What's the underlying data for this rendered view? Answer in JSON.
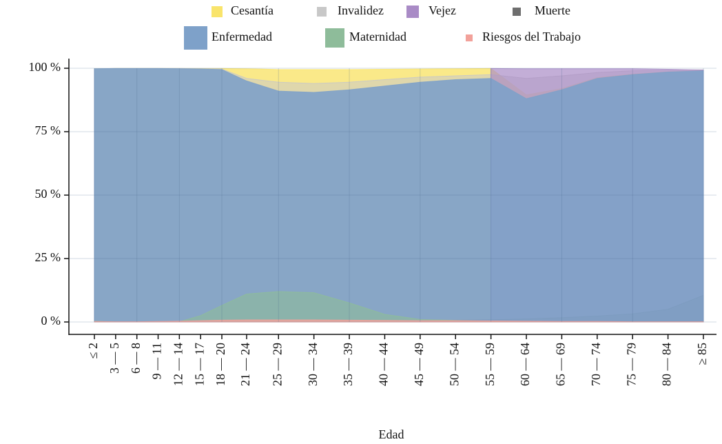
{
  "chart_data": {
    "type": "area",
    "xlabel": "Edad",
    "x": [
      1,
      4,
      7,
      10,
      13,
      16,
      19,
      22.5,
      27,
      32,
      37,
      42,
      47,
      52,
      57,
      62,
      67,
      72,
      77,
      82,
      87
    ],
    "xlim": [
      1,
      87
    ],
    "xticks": [
      {
        "value": 1,
        "label": "≤ 2"
      },
      {
        "value": 4,
        "label": "3 — 5"
      },
      {
        "value": 7,
        "label": "6 — 8"
      },
      {
        "value": 10,
        "label": "9 — 11"
      },
      {
        "value": 13,
        "label": "12 — 14"
      },
      {
        "value": 16,
        "label": "15 — 17"
      },
      {
        "value": 19,
        "label": "18 — 20"
      },
      {
        "value": 22.5,
        "label": "21 — 24"
      },
      {
        "value": 27,
        "label": "25 — 29"
      },
      {
        "value": 32,
        "label": "30 — 34"
      },
      {
        "value": 37,
        "label": "35 — 39"
      },
      {
        "value": 42,
        "label": "40 — 44"
      },
      {
        "value": 47,
        "label": "45 — 49"
      },
      {
        "value": 52,
        "label": "50 — 54"
      },
      {
        "value": 57,
        "label": "55 — 59"
      },
      {
        "value": 62,
        "label": "60 — 64"
      },
      {
        "value": 67,
        "label": "65 — 69"
      },
      {
        "value": 72,
        "label": "70 — 74"
      },
      {
        "value": 77,
        "label": "75 — 79"
      },
      {
        "value": 82,
        "label": "80 — 84"
      },
      {
        "value": 87,
        "label": "≥ 85"
      }
    ],
    "ylim": [
      -3,
      102
    ],
    "yticks": [
      {
        "value": 0,
        "label": "0 %"
      },
      {
        "value": 25,
        "label": "25 %"
      },
      {
        "value": 50,
        "label": "50 %"
      },
      {
        "value": 75,
        "label": "75 %"
      },
      {
        "value": 100,
        "label": "100 %"
      }
    ],
    "grid": true,
    "series": [
      {
        "name": "Cesantía",
        "color": "#f9e46b",
        "values": [
          99.8,
          99.9,
          99.9,
          99.9,
          99.9,
          99.9,
          99.9,
          99.8,
          99.5,
          99.5,
          99.5,
          99.6,
          99.7,
          99.8,
          99.9,
          89.5,
          92,
          96.3,
          97.7,
          98.6,
          99.1
        ]
      },
      {
        "name": "Invalidez",
        "color": "#c8c8c8",
        "values": [
          99.8,
          99.9,
          99.9,
          99.9,
          99.9,
          99.8,
          99.7,
          96,
          94.5,
          94,
          94.5,
          95.5,
          96.5,
          97,
          97.5,
          96,
          97,
          98.3,
          99,
          99.2,
          99.4
        ]
      },
      {
        "name": "Vejez",
        "color": "#a98bc6",
        "values": [
          null,
          null,
          null,
          null,
          null,
          null,
          null,
          null,
          null,
          null,
          null,
          null,
          null,
          null,
          99.9,
          99.8,
          99.8,
          99.8,
          99.8,
          99.6,
          99.3
        ]
      },
      {
        "name": "Muerte",
        "color": "#6e6e6e",
        "values": [
          0,
          0,
          0,
          0,
          0,
          0,
          0.2,
          0.3,
          0.3,
          0.4,
          0.4,
          0.5,
          0.6,
          0.7,
          0.9,
          1.2,
          1.7,
          2.3,
          3.2,
          5,
          10.5
        ]
      },
      {
        "name": "Enfermedad",
        "color": "#7ea1c9",
        "values": [
          99.8,
          99.9,
          99.9,
          99.9,
          99.8,
          99.7,
          99.5,
          95,
          91,
          90.5,
          91.5,
          93,
          94.5,
          95.5,
          96,
          88,
          91.5,
          96,
          97.5,
          98.5,
          99
        ]
      },
      {
        "name": "Maternidad",
        "color": "#8ebc9a",
        "values": [
          0.3,
          0,
          0,
          0,
          0.1,
          2.5,
          6.5,
          11,
          12,
          11.5,
          7.5,
          3,
          1,
          0.6,
          0.3,
          0.2,
          0.1,
          0.1,
          0,
          0,
          0
        ]
      },
      {
        "name": "Riesgos del Trabajo",
        "color": "#f2a19a",
        "values": [
          0.2,
          0.1,
          0.1,
          0.2,
          0.3,
          0.5,
          0.7,
          0.8,
          0.8,
          0.8,
          0.7,
          0.6,
          0.5,
          0.5,
          0.4,
          0.3,
          0.2,
          0.2,
          0.1,
          0.1,
          0.1
        ]
      }
    ]
  }
}
